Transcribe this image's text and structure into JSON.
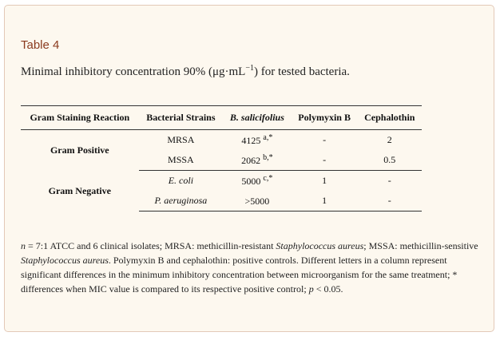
{
  "table_label": "Table 4",
  "caption": {
    "before": "Minimal inhibitory concentration 90% (μg·mL",
    "sup": "−1",
    "after": ") for tested bacteria."
  },
  "table": {
    "headers": [
      "Gram Staining Reaction",
      "Bacterial Strains",
      "B. salicifolius",
      "Polymyxin B",
      "Cephalothin"
    ],
    "groups": [
      {
        "label": "Gram Positive",
        "rows": [
          {
            "strain": "MRSA",
            "value": "4125 ",
            "sup": "a,*",
            "polymyxin": "-",
            "cephalothin": "2"
          },
          {
            "strain": "MSSA",
            "value": "2062 ",
            "sup": "b,*",
            "polymyxin": "-",
            "cephalothin": "0.5"
          }
        ]
      },
      {
        "label": "Gram Negative",
        "rows": [
          {
            "strain": "E. coli",
            "value": "5000 ",
            "sup": "c,*",
            "polymyxin": "1",
            "cephalothin": "-"
          },
          {
            "strain": "P. aeruginosa",
            "value": ">5000",
            "sup": "",
            "polymyxin": "1",
            "cephalothin": "-"
          }
        ]
      }
    ]
  },
  "footnote": {
    "n": "n",
    "p1": " = 7:1 ATCC and 6 clinical isolates; MRSA: methicillin-resistant ",
    "sa1": "Staphylococcus aureus",
    "p2": "; MSSA: methicillin-sensitive ",
    "sa2": "Staphylococcus aureus",
    "p3": ". Polymyxin B and cephalothin: positive controls. Different letters in a column represent significant differences in the minimum inhibitory concentration between microorganism for the same treatment; * differences when MIC value is compared to its respective positive control; ",
    "p": "p",
    "p4": " < 0.05."
  }
}
